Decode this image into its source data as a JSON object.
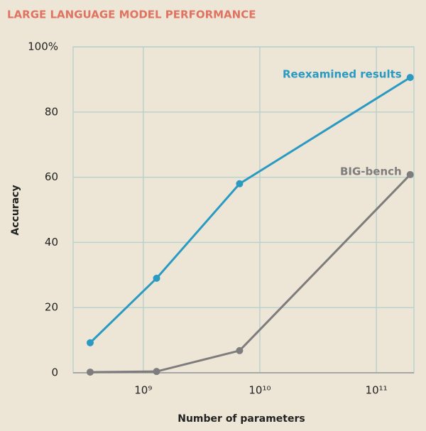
{
  "chart_data": {
    "type": "line",
    "title": "LARGE LANGUAGE MODEL PERFORMANCE",
    "x_label": "Number of parameters",
    "y_label": "Accuracy",
    "xscale": "log",
    "xlim": [
      250000000.0,
      210000000000.0
    ],
    "ylim": [
      0,
      100
    ],
    "xticks": [
      {
        "value": 1000000000.0,
        "label": "10⁹"
      },
      {
        "value": 10000000000.0,
        "label": "10¹⁰"
      },
      {
        "value": 100000000000.0,
        "label": "10¹¹"
      }
    ],
    "yticks": [
      0,
      20,
      40,
      60,
      80,
      {
        "value": 100,
        "label": "100%"
      }
    ],
    "grid": true,
    "x": [
      350000000.0,
      1300000000.0,
      6700000000.0,
      195000000000.0
    ],
    "series": [
      {
        "name": "Reexamined results",
        "color": "#2b9ac3",
        "values": [
          9.2,
          29,
          58,
          90.6
        ]
      },
      {
        "name": "BIG-bench",
        "color": "#7e7c7d",
        "values": [
          0.2,
          0.4,
          6.8,
          60.8
        ]
      }
    ]
  }
}
